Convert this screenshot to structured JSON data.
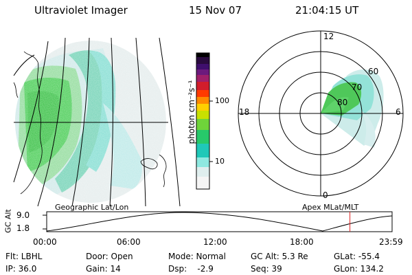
{
  "header": {
    "instrument": "Ultraviolet Imager",
    "date": "15 Nov 07",
    "time": "21:04:15 UT"
  },
  "colorbar": {
    "unit_label": "photon cm⁻²s⁻¹",
    "ticks": [
      "100",
      "10"
    ],
    "colors": [
      "#000000",
      "#2a0b3f",
      "#3f0f6d",
      "#6c1a7d",
      "#a0206a",
      "#d21d2b",
      "#ff3a00",
      "#ff8a00",
      "#ffd000",
      "#c8e000",
      "#6fd43a",
      "#27c96a",
      "#1fc8b8",
      "#8ee8e0",
      "#dfeeee",
      "#f5f5f5"
    ]
  },
  "geo_panel": {
    "label": "Geographic Lat/Lon"
  },
  "polar_panel": {
    "label": "Apex MLat/MLT",
    "mlt_labels": [
      "12",
      "18",
      "6",
      "0"
    ],
    "mlat_labels": [
      "60",
      "70",
      "80"
    ]
  },
  "altitude_plot": {
    "ylabel": "GC Alt",
    "yticks": [
      "9.0",
      "1.8"
    ],
    "xticks": [
      "00:00",
      "06:00",
      "12:00",
      "18:00",
      "23:59"
    ],
    "current_time_marker_color": "#e02020",
    "current_time_hours": 21.07
  },
  "status": {
    "flt": "Flt: LBHL",
    "door": "Door: Open",
    "mode": "Mode: Normal",
    "gc_alt": "GC Alt: 5.3 Re",
    "glat": "GLat: -55.4",
    "ip": "IP: 36.0",
    "gain": "Gain: 14",
    "dsp": "Dsp:    -2.9",
    "seq": "Seq: 39",
    "glon": "GLon: 134.2"
  }
}
